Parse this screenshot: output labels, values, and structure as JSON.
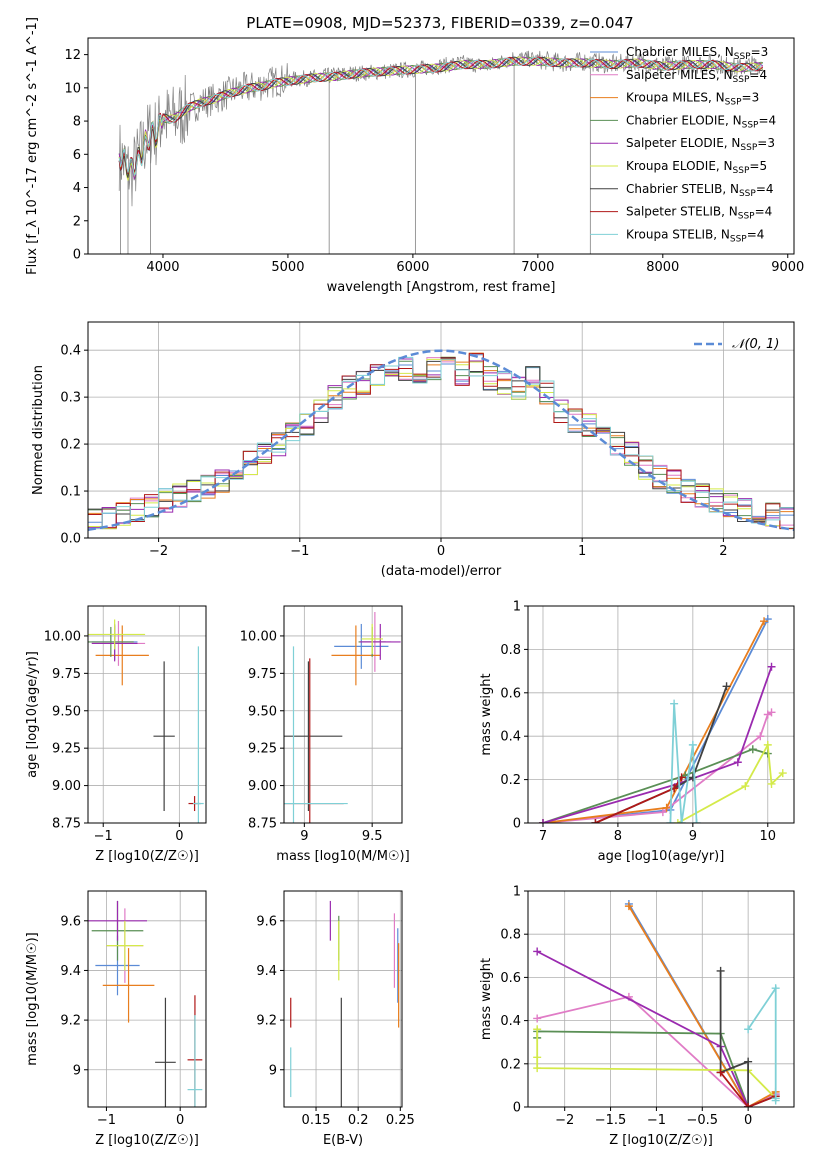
{
  "figure_title": "PLATE=0908, MJD=52373, FIBERID=0339, z=0.047",
  "colors": {
    "Chabrier MILES": "#5b8bd6",
    "Salpeter MILES": "#e07cc6",
    "Kroupa MILES": "#e87e1e",
    "Chabrier ELODIE": "#5a8f55",
    "Salpeter ELODIE": "#9a2aaf",
    "Kroupa ELODIE": "#d4ea4a",
    "Chabrier STELIB": "#404040",
    "Salpeter STELIB": "#b01818",
    "Kroupa STELIB": "#7fd0d6",
    "data": "#808080",
    "normal": "#5b8bd6"
  },
  "chart_data": [
    {
      "id": "spectrum",
      "type": "line",
      "xlabel": "wavelength [Angstrom, rest frame]",
      "ylabel": "Flux [f_λ 10^-17 erg cm^-2 s^-1 A^-1]",
      "xlim": [
        3400,
        9050
      ],
      "ylim": [
        0,
        13
      ],
      "xticks": [
        4000,
        5000,
        6000,
        7000,
        8000,
        9000
      ],
      "yticks": [
        0,
        2,
        4,
        6,
        8,
        10,
        12
      ],
      "legend": "right",
      "legend_entries": [
        "Chabrier MILES, N_SSP=3",
        "Salpeter MILES, N_SSP=4",
        "Kroupa MILES, N_SSP=3",
        "Chabrier ELODIE, N_SSP=4",
        "Salpeter ELODIE, N_SSP=3",
        "Kroupa ELODIE, N_SSP=5",
        "Chabrier STELIB, N_SSP=4",
        "Salpeter STELIB, N_SSP=4",
        "Kroupa STELIB, N_SSP=4"
      ],
      "series": [
        {
          "name": "data",
          "x": [
            3650,
            3700,
            3750,
            3800,
            3850,
            3900,
            3950,
            4000,
            4050,
            4100,
            4200,
            4300,
            4400,
            4500,
            4600,
            4700,
            4800,
            4900,
            5000,
            5200,
            5400,
            5600,
            5800,
            6000,
            6200,
            6400,
            6600,
            6800,
            7000,
            7200,
            7400,
            7600,
            7800,
            8000,
            8200,
            8400,
            8600,
            8800
          ],
          "y": [
            6.0,
            5.3,
            4.8,
            5.8,
            6.6,
            7.4,
            7.3,
            8.3,
            8.0,
            8.2,
            8.7,
            9.1,
            9.3,
            9.6,
            9.9,
            10.0,
            10.2,
            10.4,
            10.5,
            10.6,
            10.8,
            10.9,
            11.0,
            11.1,
            11.3,
            11.5,
            11.3,
            11.8,
            11.7,
            11.5,
            11.6,
            11.4,
            11.6,
            11.3,
            11.4,
            11.5,
            11.2,
            11.5
          ]
        },
        {
          "name": "model",
          "x": [
            3650,
            3700,
            3750,
            3800,
            3850,
            3900,
            3950,
            4000,
            4050,
            4100,
            4200,
            4300,
            4400,
            4500,
            4600,
            4700,
            4800,
            4900,
            5000,
            5200,
            5400,
            5600,
            5800,
            6000,
            6200,
            6400,
            6600,
            6800,
            7000,
            7200,
            7400,
            7600,
            7800,
            8000,
            8200,
            8400,
            8600,
            8800
          ],
          "y": [
            6.0,
            5.4,
            5.0,
            5.6,
            6.5,
            7.2,
            7.2,
            8.2,
            8.1,
            8.2,
            8.8,
            9.1,
            9.3,
            9.6,
            9.8,
            10.0,
            10.1,
            10.3,
            10.4,
            10.6,
            10.7,
            10.9,
            11.0,
            11.1,
            11.2,
            11.4,
            11.4,
            11.6,
            11.6,
            11.5,
            11.5,
            11.4,
            11.5,
            11.3,
            11.4,
            11.4,
            11.2,
            11.3
          ]
        }
      ]
    },
    {
      "id": "residuals",
      "type": "line",
      "xlabel": "(data-model)/error",
      "ylabel": "Normed distribution",
      "xlim": [
        -2.5,
        2.5
      ],
      "ylim": [
        0,
        0.46
      ],
      "xticks": [
        -2,
        -1,
        0,
        1,
        2
      ],
      "yticks": [
        0.0,
        0.1,
        0.2,
        0.3,
        0.4
      ],
      "legend": "top-right",
      "legend_entry": "𝒩(0, 1)",
      "bin_width": 0.1,
      "series": [
        {
          "name": "N(0,1)",
          "x": [
            -2.5,
            -2.0,
            -1.5,
            -1.0,
            -0.5,
            0.0,
            0.5,
            1.0,
            1.5,
            2.0,
            2.5
          ],
          "y": [
            0.018,
            0.054,
            0.13,
            0.242,
            0.352,
            0.399,
            0.352,
            0.242,
            0.13,
            0.054,
            0.018
          ]
        },
        {
          "name": "histogram",
          "x": [
            -2.45,
            -2.35,
            -2.25,
            -2.15,
            -2.05,
            -1.95,
            -1.85,
            -1.75,
            -1.65,
            -1.55,
            -1.45,
            -1.35,
            -1.25,
            -1.15,
            -1.05,
            -0.95,
            -0.85,
            -0.75,
            -0.65,
            -0.55,
            -0.45,
            -0.35,
            -0.25,
            -0.15,
            -0.05,
            0.05,
            0.15,
            0.25,
            0.35,
            0.45,
            0.55,
            0.65,
            0.75,
            0.85,
            0.95,
            1.05,
            1.15,
            1.25,
            1.35,
            1.45,
            1.55,
            1.65,
            1.75,
            1.85,
            1.95,
            2.05,
            2.15,
            2.25,
            2.35,
            2.45
          ],
          "y": [
            0.04,
            0.04,
            0.05,
            0.06,
            0.07,
            0.08,
            0.09,
            0.1,
            0.11,
            0.12,
            0.15,
            0.16,
            0.18,
            0.2,
            0.22,
            0.24,
            0.27,
            0.3,
            0.32,
            0.33,
            0.35,
            0.37,
            0.36,
            0.34,
            0.36,
            0.36,
            0.35,
            0.37,
            0.34,
            0.33,
            0.32,
            0.34,
            0.31,
            0.27,
            0.25,
            0.24,
            0.22,
            0.2,
            0.18,
            0.15,
            0.13,
            0.12,
            0.1,
            0.09,
            0.08,
            0.07,
            0.06,
            0.05,
            0.05,
            0.04
          ]
        }
      ]
    },
    {
      "id": "age_vs_Z",
      "type": "scatter",
      "xlabel": "Z [log10(Z/Z☉)]",
      "ylabel": "age  [log10(age/yr)]",
      "xlim": [
        -1.2,
        0.35
      ],
      "ylim": [
        8.75,
        10.2
      ],
      "xticks": [
        -1,
        0
      ],
      "yticks": [
        8.75,
        9.0,
        9.25,
        9.5,
        9.75,
        10.0
      ],
      "points": [
        {
          "model": "Chabrier MILES",
          "x": -0.85,
          "y": 9.96,
          "xerr": 0.3,
          "yerr": 0.12
        },
        {
          "model": "Salpeter MILES",
          "x": -0.8,
          "y": 9.95,
          "xerr": 0.35,
          "yerr": 0.15
        },
        {
          "model": "Kroupa MILES",
          "x": -0.75,
          "y": 9.87,
          "xerr": 0.35,
          "yerr": 0.2
        },
        {
          "model": "Chabrier ELODIE",
          "x": -0.9,
          "y": 9.96,
          "xerr": 0.3,
          "yerr": 0.1
        },
        {
          "model": "Salpeter ELODIE",
          "x": -0.85,
          "y": 9.95,
          "xerr": 0.3,
          "yerr": 0.12
        },
        {
          "model": "Kroupa ELODIE",
          "x": -0.85,
          "y": 10.01,
          "xerr": 0.4,
          "yerr": 0.1
        },
        {
          "model": "Chabrier STELIB",
          "x": -0.2,
          "y": 9.33,
          "xerr": 0.14,
          "yerr": 0.5
        },
        {
          "model": "Salpeter STELIB",
          "x": 0.2,
          "y": 8.88,
          "xerr": 0.08,
          "yerr": 0.05
        },
        {
          "model": "Kroupa STELIB",
          "x": 0.25,
          "y": 8.88,
          "xerr": 0.07,
          "yerr": 1.05
        }
      ]
    },
    {
      "id": "age_vs_mass",
      "type": "scatter",
      "xlabel": "mass [log10(M/M☉)]",
      "ylabel": "",
      "xlim": [
        8.85,
        9.72
      ],
      "ylim": [
        8.75,
        10.2
      ],
      "xticks": [
        9.0,
        9.5
      ],
      "yticks": [
        8.75,
        9.0,
        9.25,
        9.5,
        9.75,
        10.0
      ],
      "points": [
        {
          "model": "Chabrier MILES",
          "x": 9.42,
          "y": 9.93,
          "xerr": 0.2,
          "yerr": 0.15
        },
        {
          "model": "Salpeter MILES",
          "x": 9.52,
          "y": 9.96,
          "xerr": 0.12,
          "yerr": 0.2
        },
        {
          "model": "Kroupa MILES",
          "x": 9.38,
          "y": 9.87,
          "xerr": 0.18,
          "yerr": 0.2
        },
        {
          "model": "Chabrier ELODIE",
          "x": 9.5,
          "y": 9.96,
          "xerr": 0.1,
          "yerr": 0.1
        },
        {
          "model": "Salpeter ELODIE",
          "x": 9.56,
          "y": 9.96,
          "xerr": 0.15,
          "yerr": 0.12
        },
        {
          "model": "Kroupa ELODIE",
          "x": 9.5,
          "y": 9.98,
          "xerr": 0.08,
          "yerr": 0.1
        },
        {
          "model": "Chabrier STELIB",
          "x": 9.03,
          "y": 9.33,
          "xerr": 0.25,
          "yerr": 0.5
        },
        {
          "model": "Salpeter STELIB",
          "x": 9.04,
          "y": 8.88,
          "xerr": 0.25,
          "yerr": 0.97
        },
        {
          "model": "Kroupa STELIB",
          "x": 8.92,
          "y": 8.88,
          "xerr": 0.4,
          "yerr": 1.05
        }
      ]
    },
    {
      "id": "mass_weight_vs_age",
      "type": "line",
      "xlabel": "age  [log10(age/yr)]",
      "ylabel": "mass weight",
      "xlim": [
        6.8,
        10.35
      ],
      "ylim": [
        0,
        1.0
      ],
      "xticks": [
        7,
        8,
        9,
        10
      ],
      "yticks": [
        0.0,
        0.2,
        0.4,
        0.6,
        0.8,
        1.0
      ],
      "series": [
        {
          "name": "Chabrier MILES",
          "x": [
            7.0,
            8.7,
            10.0
          ],
          "y": [
            0.0,
            0.06,
            0.94
          ]
        },
        {
          "name": "Salpeter MILES",
          "x": [
            7.0,
            8.6,
            9.9,
            10.0,
            10.05
          ],
          "y": [
            0.0,
            0.05,
            0.4,
            0.5,
            0.51
          ]
        },
        {
          "name": "Kroupa MILES",
          "x": [
            7.0,
            8.65,
            9.95
          ],
          "y": [
            0.0,
            0.07,
            0.93
          ]
        },
        {
          "name": "Chabrier ELODIE",
          "x": [
            7.0,
            8.9,
            9.8,
            10.0
          ],
          "y": [
            0.0,
            0.22,
            0.34,
            0.32
          ]
        },
        {
          "name": "Salpeter ELODIE",
          "x": [
            7.0,
            8.8,
            9.6,
            10.05
          ],
          "y": [
            0.0,
            0.18,
            0.28,
            0.72
          ]
        },
        {
          "name": "Kroupa ELODIE",
          "x": [
            8.8,
            9.7,
            10.0,
            10.05,
            10.2
          ],
          "y": [
            0.0,
            0.17,
            0.36,
            0.18,
            0.23
          ]
        },
        {
          "name": "Chabrier STELIB",
          "x": [
            7.7,
            8.75,
            9.0,
            9.45
          ],
          "y": [
            0.0,
            0.16,
            0.21,
            0.63
          ]
        },
        {
          "name": "Salpeter STELIB",
          "x": [
            7.7,
            8.75,
            8.85
          ],
          "y": [
            0.0,
            0.16,
            0.21
          ]
        },
        {
          "name": "Kroupa STELIB",
          "x": [
            8.7,
            8.75,
            8.85,
            9.0,
            9.05
          ],
          "y": [
            0.0,
            0.55,
            0.0,
            0.36,
            0.0
          ]
        }
      ]
    },
    {
      "id": "mass_vs_Z",
      "type": "scatter",
      "xlabel": "Z [log10(Z/Z☉)]",
      "ylabel": "mass [log10(M/M☉)]",
      "xlim": [
        -1.25,
        0.35
      ],
      "ylim": [
        8.85,
        9.72
      ],
      "xticks": [
        -1,
        0
      ],
      "yticks": [
        9.0,
        9.2,
        9.4,
        9.6
      ],
      "points": [
        {
          "model": "Chabrier MILES",
          "x": -0.85,
          "y": 9.42,
          "xerr": 0.3,
          "yerr": 0.12
        },
        {
          "model": "Salpeter MILES",
          "x": -0.75,
          "y": 9.5,
          "xerr": 0.25,
          "yerr": 0.15
        },
        {
          "model": "Kroupa MILES",
          "x": -0.7,
          "y": 9.34,
          "xerr": 0.35,
          "yerr": 0.15
        },
        {
          "model": "Chabrier ELODIE",
          "x": -0.85,
          "y": 9.56,
          "xerr": 0.35,
          "yerr": 0.12
        },
        {
          "model": "Salpeter ELODIE",
          "x": -0.85,
          "y": 9.6,
          "xerr": 0.4,
          "yerr": 0.08
        },
        {
          "model": "Kroupa ELODIE",
          "x": -0.75,
          "y": 9.5,
          "xerr": 0.25,
          "yerr": 0.1
        },
        {
          "model": "Chabrier STELIB",
          "x": -0.2,
          "y": 9.03,
          "xerr": 0.14,
          "yerr": 0.26
        },
        {
          "model": "Salpeter STELIB",
          "x": 0.2,
          "y": 9.04,
          "xerr": 0.1,
          "yerr": 0.26
        },
        {
          "model": "Kroupa STELIB",
          "x": 0.2,
          "y": 8.92,
          "xerr": 0.1,
          "yerr": 0.3
        }
      ]
    },
    {
      "id": "mass_vs_ebv",
      "type": "scatter",
      "xlabel": "E(B-V)",
      "ylabel": "",
      "xlim": [
        0.112,
        0.252
      ],
      "ylim": [
        8.85,
        9.72
      ],
      "xticks": [
        0.15,
        0.2,
        0.25
      ],
      "yticks": [
        9.0,
        9.2,
        9.4,
        9.6
      ],
      "points": [
        {
          "model": "Chabrier MILES",
          "x": 0.247,
          "y": 9.42,
          "yerr": 0.15
        },
        {
          "model": "Salpeter MILES",
          "x": 0.243,
          "y": 9.48,
          "yerr": 0.15
        },
        {
          "model": "Kroupa MILES",
          "x": 0.248,
          "y": 9.34,
          "yerr": 0.17
        },
        {
          "model": "Chabrier ELODIE",
          "x": 0.177,
          "y": 9.53,
          "yerr": 0.09
        },
        {
          "model": "Salpeter ELODIE",
          "x": 0.167,
          "y": 9.6,
          "yerr": 0.08
        },
        {
          "model": "Kroupa ELODIE",
          "x": 0.177,
          "y": 9.48,
          "yerr": 0.12
        },
        {
          "model": "Chabrier STELIB",
          "x": 0.18,
          "y": 9.03,
          "yerr": 0.26
        },
        {
          "model": "Salpeter STELIB",
          "x": 0.12,
          "y": 9.23,
          "yerr": 0.06
        },
        {
          "model": "Kroupa STELIB",
          "x": 0.12,
          "y": 8.99,
          "yerr": 0.1
        }
      ]
    },
    {
      "id": "mass_weight_vs_Z",
      "type": "line",
      "xlabel": "Z [log10(Z/Z☉)]",
      "ylabel": "mass weight",
      "xlim": [
        -2.4,
        0.5
      ],
      "ylim": [
        0,
        1.0
      ],
      "xticks": [
        -2.0,
        -1.5,
        -1.0,
        -0.5,
        0.0
      ],
      "yticks": [
        0.0,
        0.2,
        0.4,
        0.6,
        0.8,
        1.0
      ],
      "series": [
        {
          "name": "Chabrier MILES",
          "x": [
            -1.3,
            0.0,
            0.3
          ],
          "y": [
            0.94,
            0.0,
            0.06
          ]
        },
        {
          "name": "Salpeter MILES",
          "x": [
            -2.3,
            -1.3,
            0.0,
            0.3
          ],
          "y": [
            0.41,
            0.51,
            0.0,
            0.06
          ]
        },
        {
          "name": "Kroupa MILES",
          "x": [
            -1.3,
            0.0,
            0.3
          ],
          "y": [
            0.93,
            0.0,
            0.07
          ]
        },
        {
          "name": "Chabrier ELODIE",
          "x": [
            -2.3,
            -2.3,
            -0.3,
            0.0
          ],
          "y": [
            0.32,
            0.35,
            0.34,
            0.0
          ]
        },
        {
          "name": "Salpeter ELODIE",
          "x": [
            -2.3,
            -0.3,
            0.0
          ],
          "y": [
            0.72,
            0.28,
            0.0
          ]
        },
        {
          "name": "Kroupa ELODIE",
          "x": [
            -2.3,
            -2.3,
            -2.3,
            0.0,
            0.3
          ],
          "y": [
            0.23,
            0.36,
            0.18,
            0.17,
            0.04
          ]
        },
        {
          "name": "Chabrier STELIB",
          "x": [
            -0.3,
            -0.3,
            0.0,
            0.0,
            0.3
          ],
          "y": [
            0.63,
            0.16,
            0.21,
            0.0,
            0.05
          ]
        },
        {
          "name": "Salpeter STELIB",
          "x": [
            -0.3,
            0.0,
            0.3
          ],
          "y": [
            0.16,
            0.0,
            0.05
          ]
        },
        {
          "name": "Kroupa STELIB",
          "x": [
            0.0,
            0.3,
            0.3,
            0.3
          ],
          "y": [
            0.36,
            0.55,
            0.04,
            0.03
          ]
        }
      ]
    }
  ]
}
